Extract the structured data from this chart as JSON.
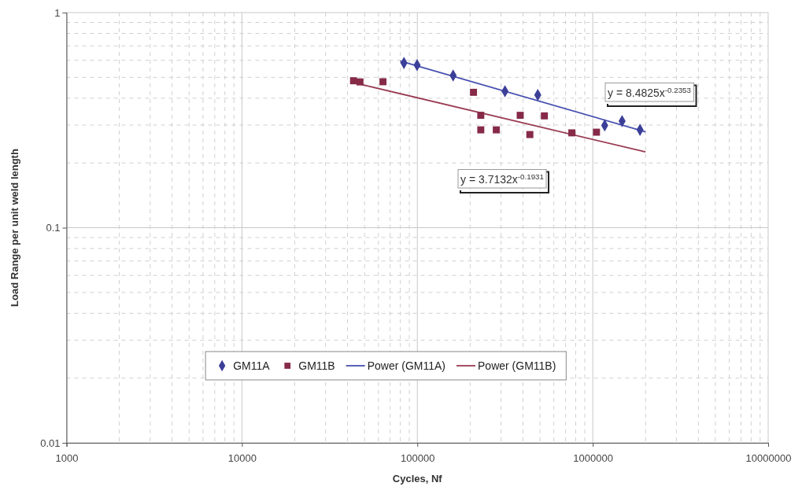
{
  "chart_data": {
    "type": "scatter",
    "xlabel": "Cycles, Nf",
    "ylabel": "Load Range per unit weld length",
    "log": "xy",
    "grid": true,
    "legend": "bottom",
    "xlim": [
      1000,
      10000000
    ],
    "xticks": [
      1000,
      10000,
      100000,
      1000000,
      10000000
    ],
    "ylim": [
      0.01,
      1
    ],
    "yticks": [
      0.01,
      0.1,
      1
    ],
    "series": [
      {
        "name": "GM11A",
        "marker": "diamond",
        "color": "#3c3f98",
        "x": [
          83900,
          99700,
          160000,
          316000,
          486000,
          1170000,
          1470000,
          1860000
        ],
        "values": [
          0.583,
          0.57,
          0.51,
          0.431,
          0.414,
          0.299,
          0.313,
          0.285
        ]
      },
      {
        "name": "GM11B",
        "marker": "square",
        "color": "#862a48",
        "x": [
          43300,
          47100,
          63700,
          209000,
          230000,
          230000,
          282000,
          386000,
          438000,
          530000,
          760000,
          1050000
        ],
        "values": [
          0.482,
          0.476,
          0.477,
          0.426,
          0.333,
          0.285,
          0.285,
          0.333,
          0.271,
          0.331,
          0.276,
          0.278
        ]
      },
      {
        "name": "Power (GM11A)",
        "type": "line",
        "marker": "none",
        "line_style": "solid",
        "color": "#4650b0",
        "x": [
          80000,
          2000000
        ],
        "values": [
          0.595,
          0.279
        ]
      },
      {
        "name": "Power (GM11B)",
        "type": "line",
        "marker": "none",
        "line_style": "solid",
        "color": "#9a3c52",
        "x": [
          43000,
          2000000
        ],
        "values": [
          0.473,
          0.225
        ]
      }
    ],
    "annotations": [
      "y = 8.4825x$^{-0.2353}$",
      "y = 3.7132x$^{-0.1931}$"
    ]
  }
}
